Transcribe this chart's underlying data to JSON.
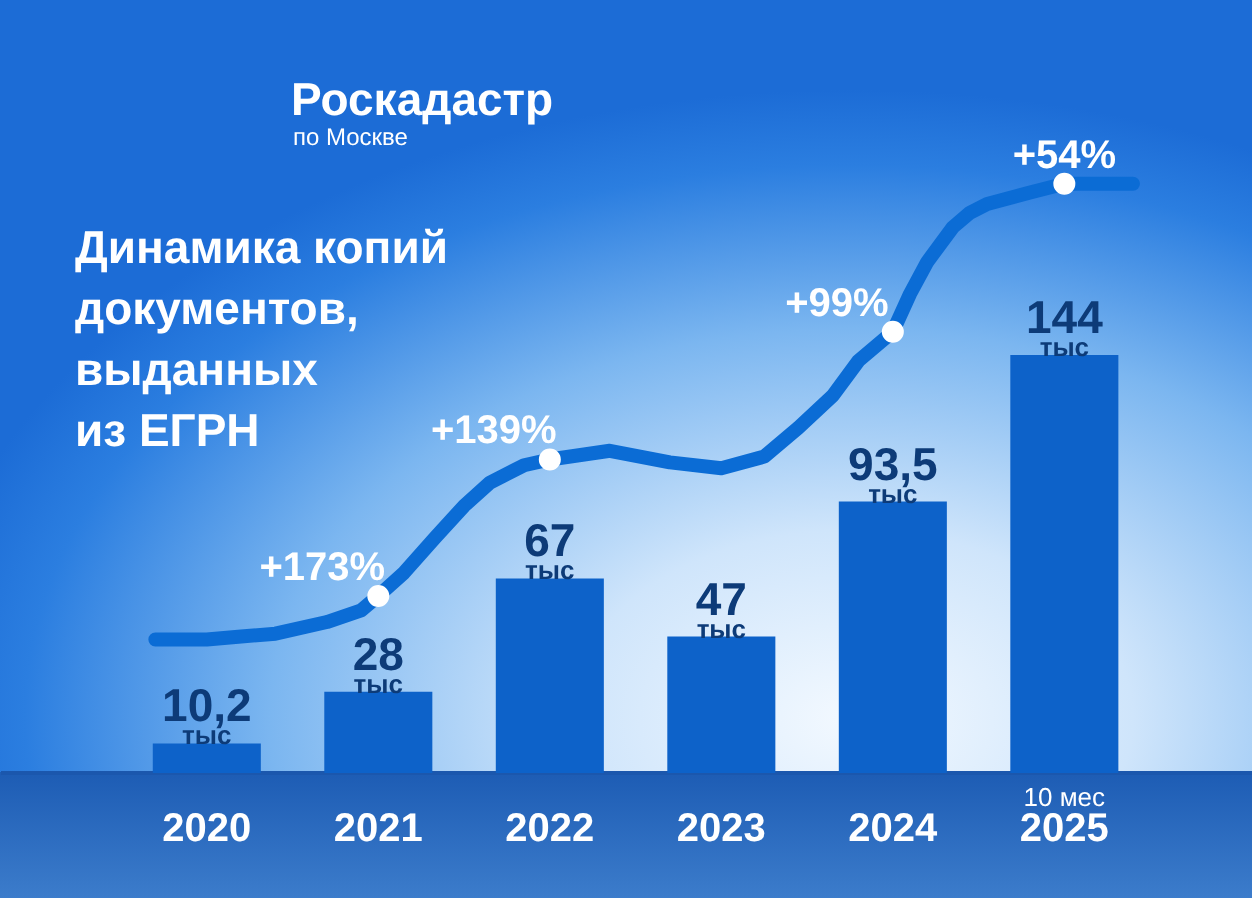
{
  "chart_data": {
    "type": "bar",
    "title": "Динамика копий\nдокументов,\nвыданных\nиз ЕГРН",
    "x": [
      2020,
      2021,
      2022,
      2023,
      2024,
      2025
    ],
    "xlim": [
      2018.8,
      2026.1
    ],
    "xticks": [
      2020,
      2021,
      2022,
      2023,
      2024,
      2025
    ],
    "series": [
      {
        "color": "#0d62c9",
        "values": [
          10.2,
          28,
          67,
          47,
          93.5,
          144
        ],
        "value_labels": [
          "10,2 тыс",
          "28 тыс",
          "67 тыс",
          "47 тыс",
          "93,5 тыс",
          "144 тыс"
        ]
      },
      {
        "type": "line",
        "color": "#0b6cd5",
        "x": [
          2019.7,
          2020,
          2020.2,
          2020.4,
          2020.7,
          2020.9,
          2021,
          2021.15,
          2021.33,
          2021.5,
          2021.65,
          2021.85,
          2022,
          2022.35,
          2022.7,
          2023,
          2023.25,
          2023.45,
          2023.65,
          2023.8,
          2024,
          2024.1,
          2024.2,
          2024.35,
          2024.45,
          2024.55,
          2024.8,
          2025,
          2025.4
        ],
        "values": [
          46,
          46,
          47,
          48,
          52,
          56,
          61,
          69,
          81,
          92,
          100,
          106,
          108,
          111,
          107,
          105,
          109,
          119,
          130,
          142,
          152,
          165,
          176,
          188,
          193,
          196,
          200,
          203,
          203
        ]
      },
      {
        "type": "scatter",
        "color": "#ffffff",
        "marker": "circle",
        "x": [
          2021,
          2022,
          2024,
          2025
        ],
        "values": [
          61,
          108,
          152,
          203
        ]
      }
    ],
    "annotations": [
      "Роскадастр\nпо Москве",
      "10 мес",
      {
        "text": "+173%",
        "x": 2021,
        "y": 61
      },
      {
        "text": "+139%",
        "x": 2022,
        "y": 108
      },
      {
        "text": "+99%",
        "x": 2024,
        "y": 152
      },
      {
        "text": "+54%",
        "x": 2025,
        "y": 203
      }
    ],
    "tick_labels": "x",
    "grid": false
  }
}
